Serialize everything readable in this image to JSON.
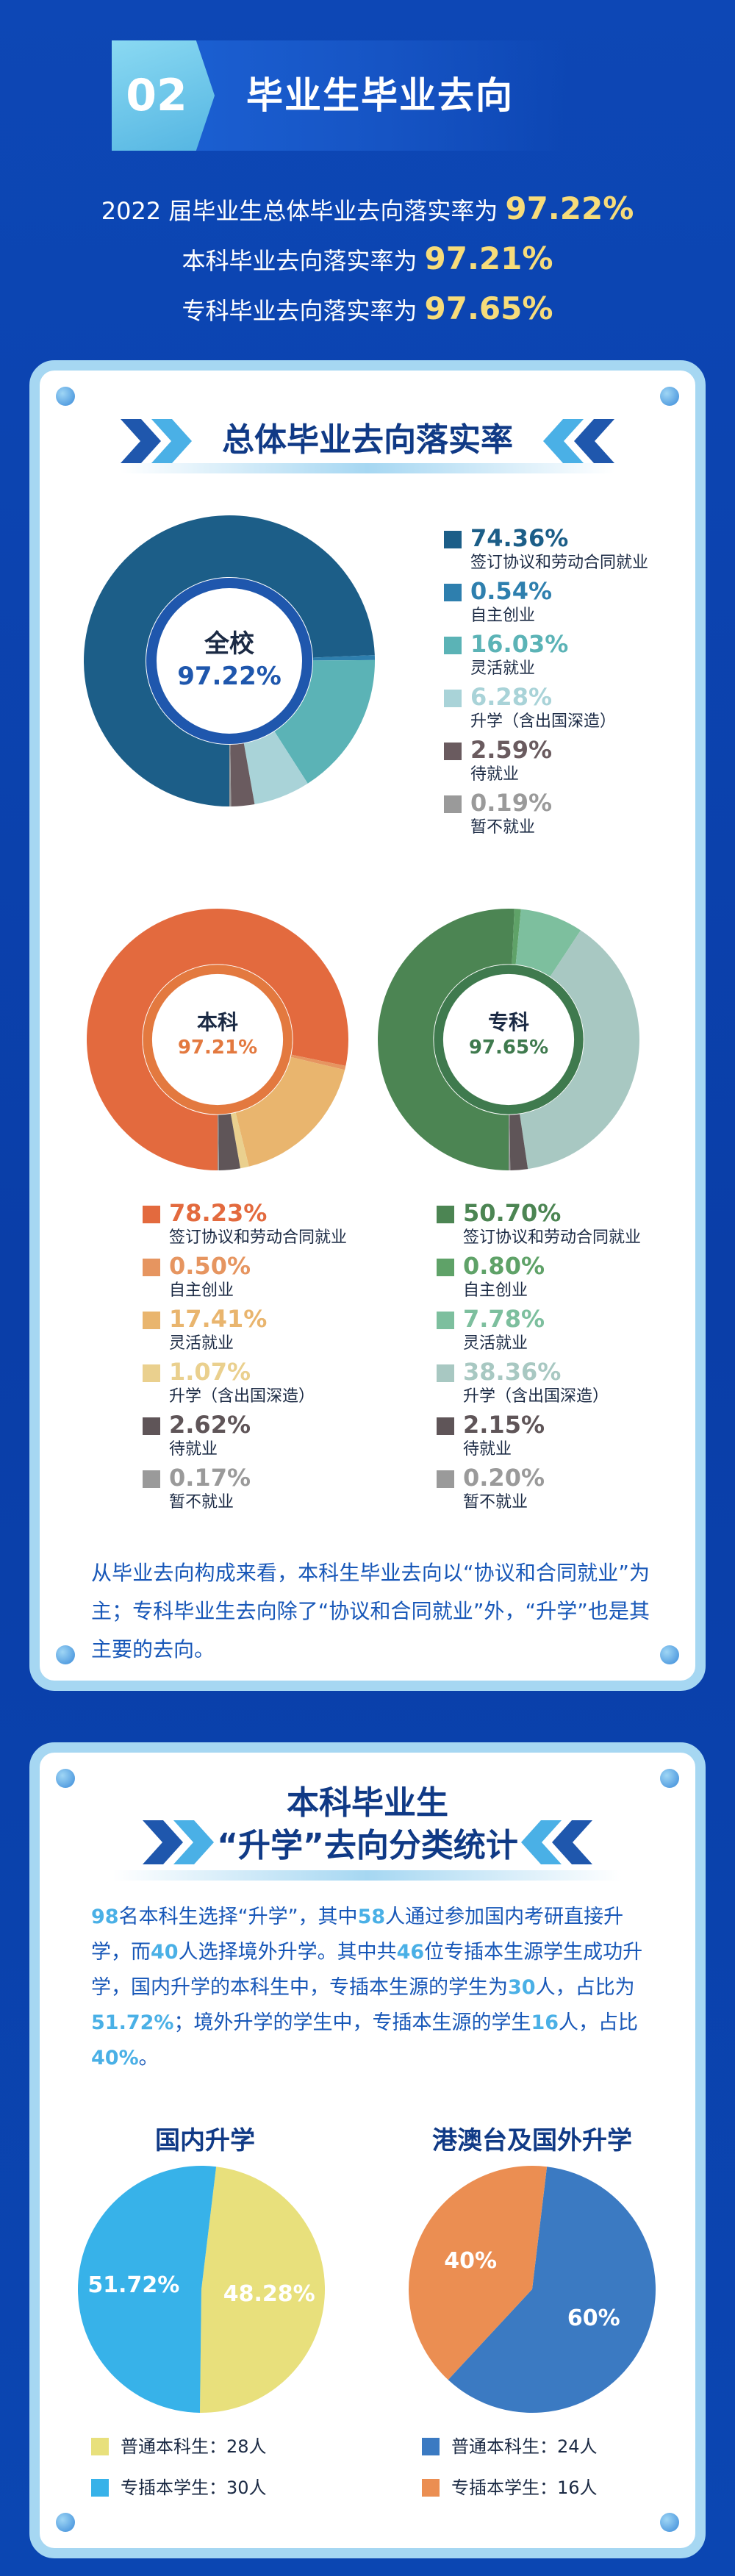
{
  "header": {
    "num": "02",
    "title": "毕业生毕业去向"
  },
  "rates": [
    {
      "label": "2022 届毕业生总体毕业去向落实率为",
      "value": "97.22%"
    },
    {
      "label": "本科毕业去向落实率为",
      "value": "97.21%"
    },
    {
      "label": "专科毕业去向落实率为",
      "value": "97.65%"
    }
  ],
  "section1": {
    "title": "总体毕业去向落实率",
    "paragraph": "从毕业去向构成来看，本科生毕业去向以“协议和合同就业”为主；专科毕业生去向除了“协议和合同就业”外，“升学”也是其主要的去向。"
  },
  "section2": {
    "title_line1": "本科毕业生",
    "title_line2": "“升学”去向分类统计",
    "paragraph_html": "<span class=\"hl\">98</span>名本科生选择“升学”，其中<span class=\"hl\">58</span>人通过参加国内考研直接升学，而<span class=\"hl\">40</span>人选择境外升学。其中共<span class=\"hl\">46</span>位专插本生源学生成功升学，国内升学的本科生中，专插本生源的学生为<span class=\"hl\">30</span>人，占比为<span class=\"hl\">51.72%</span>；境外升学的学生中，专插本生源的学生<span class=\"hl\">16</span>人，占比<span class=\"hl\">40%</span>。"
  },
  "chart_data": [
    {
      "type": "pie",
      "variant": "donut",
      "name": "overall",
      "center_line1": "全校",
      "center_line2": "97.22%",
      "center_color": "#1f57ad",
      "slices": [
        {
          "label": "签订协议和劳动合同就业",
          "value": 74.36,
          "display": "74.36%",
          "color": "#1c5e88"
        },
        {
          "label": "自主创业",
          "value": 0.54,
          "display": "0.54%",
          "color": "#2e7fae"
        },
        {
          "label": "灵活就业",
          "value": 16.03,
          "display": "16.03%",
          "color": "#5bb3b6"
        },
        {
          "label": "升学（含出国深造）",
          "value": 6.28,
          "display": "6.28%",
          "color": "#a9d3d8"
        },
        {
          "label": "待就业",
          "value": 2.59,
          "display": "2.59%",
          "color": "#6a5b5f"
        },
        {
          "label": "暂不就业",
          "value": 0.19,
          "display": "0.19%",
          "color": "#9a9a9a"
        }
      ]
    },
    {
      "type": "pie",
      "variant": "donut",
      "name": "undergrad",
      "center_line1": "本科",
      "center_line2": "97.21%",
      "center_color": "#e3793f",
      "slices": [
        {
          "label": "签订协议和劳动合同就业",
          "value": 78.23,
          "display": "78.23%",
          "color": "#e36a3e"
        },
        {
          "label": "自主创业",
          "value": 0.5,
          "display": "0.50%",
          "color": "#e69560"
        },
        {
          "label": "灵活就业",
          "value": 17.41,
          "display": "17.41%",
          "color": "#e9b56e"
        },
        {
          "label": "升学（含出国深造）",
          "value": 1.07,
          "display": "1.07%",
          "color": "#ead08e"
        },
        {
          "label": "待就业",
          "value": 2.62,
          "display": "2.62%",
          "color": "#5f5558"
        },
        {
          "label": "暂不就业",
          "value": 0.17,
          "display": "0.17%",
          "color": "#9a9a9a"
        }
      ]
    },
    {
      "type": "pie",
      "variant": "donut",
      "name": "college",
      "center_line1": "专科",
      "center_line2": "97.65%",
      "center_color": "#3f7a4e",
      "slices": [
        {
          "label": "签订协议和劳动合同就业",
          "value": 50.7,
          "display": "50.70%",
          "color": "#4c8553"
        },
        {
          "label": "自主创业",
          "value": 0.8,
          "display": "0.80%",
          "color": "#5fa268"
        },
        {
          "label": "灵活就业",
          "value": 7.78,
          "display": "7.78%",
          "color": "#7dbf9e"
        },
        {
          "label": "升学（含出国深造）",
          "value": 38.36,
          "display": "38.36%",
          "color": "#a8c8c2"
        },
        {
          "label": "待就业",
          "value": 2.15,
          "display": "2.15%",
          "color": "#5f5558"
        },
        {
          "label": "暂不就业",
          "value": 0.2,
          "display": "0.20%",
          "color": "#9a9a9a"
        }
      ]
    },
    {
      "type": "pie",
      "name": "domestic",
      "title": "国内升学",
      "slices": [
        {
          "label": "普通本科生：28人",
          "value": 48.28,
          "display": "48.28%",
          "color": "#e8e07c"
        },
        {
          "label": "专插本学生：30人",
          "value": 51.72,
          "display": "51.72%",
          "color": "#37b2e9"
        }
      ]
    },
    {
      "type": "pie",
      "name": "abroad",
      "title": "港澳台及国外升学",
      "slices": [
        {
          "label": "普通本科生：24人",
          "value": 60,
          "display": "60%",
          "color": "#3b7ac2"
        },
        {
          "label": "专插本学生：16人",
          "value": 40,
          "display": "40%",
          "color": "#eb8e52"
        }
      ]
    }
  ]
}
